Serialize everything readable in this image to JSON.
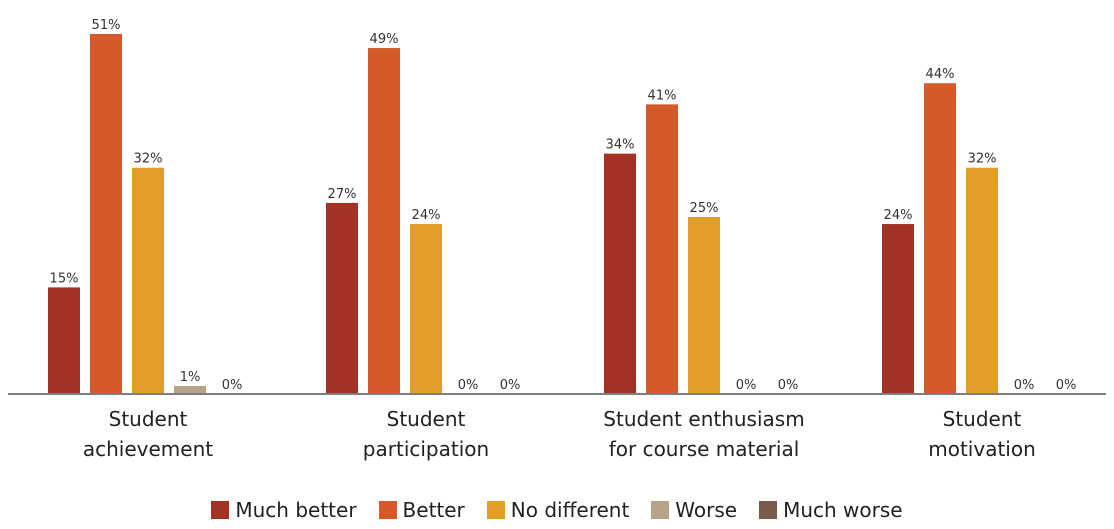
{
  "chart_data": {
    "type": "bar",
    "categories": [
      [
        "Student",
        "achievement"
      ],
      [
        "Student",
        "participation"
      ],
      [
        "Student enthusiasm",
        "for course material"
      ],
      [
        "Student",
        "motivation"
      ]
    ],
    "series": [
      {
        "name": "Much better",
        "color": "#a33224",
        "values": [
          15,
          27,
          34,
          24
        ]
      },
      {
        "name": "Better",
        "color": "#d55a29",
        "values": [
          51,
          49,
          41,
          44
        ]
      },
      {
        "name": "No different",
        "color": "#e29e27",
        "values": [
          32,
          24,
          25,
          32
        ]
      },
      {
        "name": "Worse",
        "color": "#b6a388",
        "values": [
          1,
          0,
          0,
          0
        ]
      },
      {
        "name": "Much worse",
        "color": "#7a5a4b",
        "values": [
          0,
          0,
          0,
          0
        ]
      }
    ],
    "value_suffix": "%",
    "ylim": [
      0,
      55
    ],
    "grid": false,
    "legend_position": "bottom"
  }
}
